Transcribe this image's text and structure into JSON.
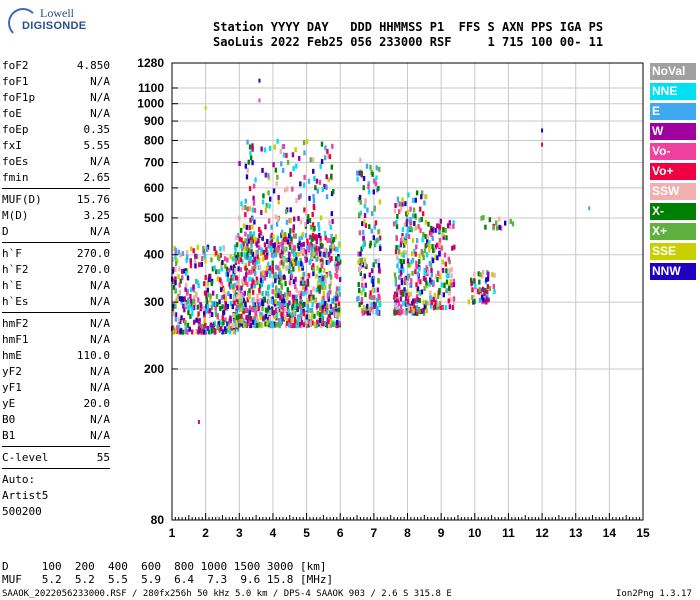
{
  "logo": {
    "top": "Lowell",
    "bottom": "DIGISONDE"
  },
  "header": {
    "line1": "Station YYYY DAY   DDD HHMMSS P1  FFS S AXN PPS IGA PS",
    "line2": "SaoLuis 2022 Feb25 056 233000 RSF     1 715 100 00- 11"
  },
  "params": [
    {
      "name": "foF2",
      "value": "4.850"
    },
    {
      "name": "foF1",
      "value": "N/A"
    },
    {
      "name": "foF1p",
      "value": "N/A"
    },
    {
      "name": "foE",
      "value": "N/A"
    },
    {
      "name": "foEp",
      "value": "0.35"
    },
    {
      "name": "fxI",
      "value": "5.55"
    },
    {
      "name": "foEs",
      "value": "N/A"
    },
    {
      "name": "fmin",
      "value": "2.65"
    }
  ],
  "params2": [
    {
      "name": "MUF(D)",
      "value": "15.76"
    },
    {
      "name": "M(D)",
      "value": "3.25"
    },
    {
      "name": "D",
      "value": "N/A"
    }
  ],
  "params3": [
    {
      "name": "h`F",
      "value": "270.0"
    },
    {
      "name": "h`F2",
      "value": "270.0"
    },
    {
      "name": "h`E",
      "value": "N/A"
    },
    {
      "name": "h`Es",
      "value": "N/A"
    }
  ],
  "params4": [
    {
      "name": "hmF2",
      "value": "N/A"
    },
    {
      "name": "hmF1",
      "value": "N/A"
    },
    {
      "name": "hmE",
      "value": "110.0"
    },
    {
      "name": "yF2",
      "value": "N/A"
    },
    {
      "name": "yF1",
      "value": "N/A"
    },
    {
      "name": "yE",
      "value": "20.0"
    },
    {
      "name": "B0",
      "value": "N/A"
    },
    {
      "name": "B1",
      "value": "N/A"
    }
  ],
  "params5": [
    {
      "name": "C-level",
      "value": "55"
    }
  ],
  "auto": {
    "line1": "Auto:",
    "line2": "Artist5",
    "line3": "500200"
  },
  "legend": [
    {
      "label": "NoVal",
      "color": "#a0a0a0"
    },
    {
      "label": "NNE",
      "color": "#00e0f0"
    },
    {
      "label": "E",
      "color": "#40a8f0"
    },
    {
      "label": "W",
      "color": "#a000a0"
    },
    {
      "label": "Vo-",
      "color": "#f040a0"
    },
    {
      "label": "Vo+",
      "color": "#f00040"
    },
    {
      "label": "SSW",
      "color": "#f0b0b0"
    },
    {
      "label": "X-",
      "color": "#008000"
    },
    {
      "label": "X+",
      "color": "#60b040"
    },
    {
      "label": "SSE",
      "color": "#c8d000"
    },
    {
      "label": "NNW",
      "color": "#2000c0"
    }
  ],
  "footer": {
    "d_line": "D     100  200  400  600  800 1000 1500 3000 [km]",
    "muf_line": "MUF   5.2  5.2  5.5  5.9  6.4  7.3  9.6 15.8 [MHz]",
    "file_line": "SAAOK_2022056233000.RSF / 280fx256h 50 kHz 5.0 km / DPS-4 SAAOK 903 / 2.6 S 315.8 E",
    "version": "Ion2Png 1.3.17"
  },
  "chart_data": {
    "type": "scatter",
    "title": "",
    "xlabel": "",
    "ylabel": "",
    "xlim": [
      1,
      15
    ],
    "ylim": [
      80,
      1280
    ],
    "yscale": "log",
    "x_ticks": [
      1,
      2,
      3,
      4,
      5,
      6,
      7,
      8,
      9,
      10,
      11,
      12,
      13,
      14,
      15
    ],
    "y_ticks": [
      80,
      200,
      300,
      400,
      500,
      600,
      700,
      800,
      900,
      1000,
      1100,
      1280
    ],
    "grid": true,
    "clusters": [
      {
        "x": [
          1.0,
          3.0
        ],
        "y": [
          250,
          420
        ],
        "n": 380
      },
      {
        "x": [
          2.8,
          6.0
        ],
        "y": [
          260,
          450
        ],
        "n": 900
      },
      {
        "x": [
          3.0,
          5.8
        ],
        "y": [
          400,
          800
        ],
        "n": 260
      },
      {
        "x": [
          6.5,
          7.2
        ],
        "y": [
          280,
          720
        ],
        "n": 160
      },
      {
        "x": [
          7.6,
          8.6
        ],
        "y": [
          280,
          590
        ],
        "n": 260
      },
      {
        "x": [
          8.6,
          9.4
        ],
        "y": [
          290,
          500
        ],
        "n": 130
      },
      {
        "x": [
          9.8,
          10.6
        ],
        "y": [
          300,
          360
        ],
        "n": 50
      },
      {
        "x": [
          10.2,
          11.3
        ],
        "y": [
          470,
          510
        ],
        "n": 14
      }
    ],
    "isolated": [
      {
        "x": 2.0,
        "y": 975
      },
      {
        "x": 3.6,
        "y": 1150
      },
      {
        "x": 3.6,
        "y": 1020
      },
      {
        "x": 12.0,
        "y": 850
      },
      {
        "x": 12.0,
        "y": 780
      },
      {
        "x": 1.8,
        "y": 145
      },
      {
        "x": 13.4,
        "y": 530
      }
    ]
  }
}
